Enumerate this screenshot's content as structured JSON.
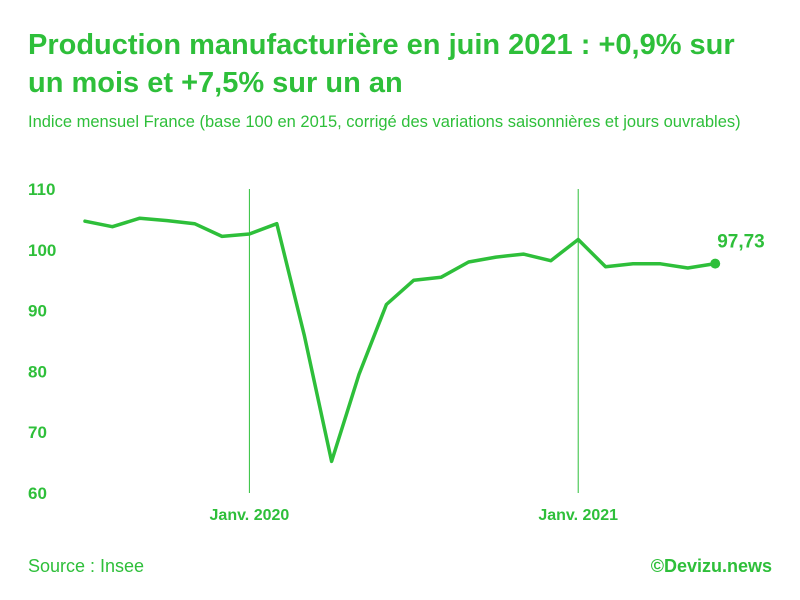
{
  "header": {
    "title": "Production manufacturière en juin 2021 : +0,9% sur un mois et +7,5% sur un an",
    "subtitle": "Indice mensuel France (base 100 en 2015, corrigé des variations saisonnières et jours ouvrables)"
  },
  "footer": {
    "source": "Source : Insee",
    "brand": "©Devizu.news"
  },
  "colors": {
    "accent": "#2ebf3a",
    "line": "#2ebf3a",
    "marker_lines": "#2ebf3a"
  },
  "chart_data": {
    "type": "line",
    "x": [
      "2019-07",
      "2019-08",
      "2019-09",
      "2019-10",
      "2019-11",
      "2019-12",
      "2020-01",
      "2020-02",
      "2020-03",
      "2020-04",
      "2020-05",
      "2020-06",
      "2020-07",
      "2020-08",
      "2020-09",
      "2020-10",
      "2020-11",
      "2020-12",
      "2021-01",
      "2021-02",
      "2021-03",
      "2021-04",
      "2021-05",
      "2021-06"
    ],
    "series": [
      {
        "values": [
          104.7,
          103.8,
          105.2,
          104.8,
          104.3,
          102.2,
          102.6,
          104.3,
          86.0,
          65.2,
          79.5,
          91.0,
          95.0,
          95.5,
          98.0,
          98.8,
          99.3,
          98.2,
          101.7,
          97.2,
          97.7,
          97.7,
          97.0,
          97.73
        ]
      }
    ],
    "ylim": [
      60,
      110
    ],
    "yticks": [
      60,
      70,
      80,
      90,
      100,
      110
    ],
    "reference_lines": [
      {
        "x": "2020-01",
        "label": "Janv. 2020"
      },
      {
        "x": "2021-01",
        "label": "Janv. 2021"
      }
    ],
    "end_label": "97,73",
    "grid": false,
    "legend": "none"
  }
}
